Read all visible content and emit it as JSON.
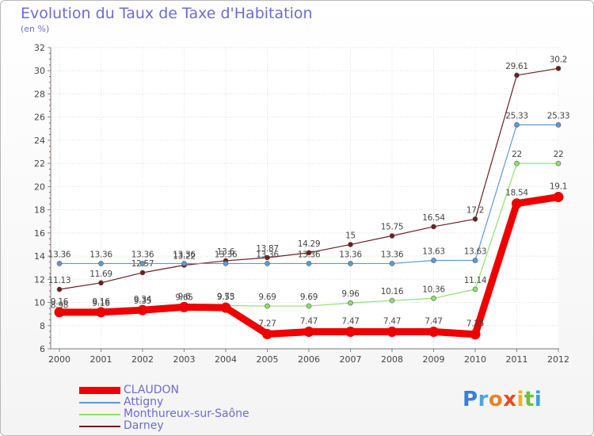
{
  "title": "Evolution du Taux de Taxe d'Habitation",
  "subtitle": "(en %)",
  "logo": {
    "letters": [
      "P",
      "r",
      "o",
      "x",
      "i",
      "t",
      "i"
    ],
    "colors": [
      "#3a7fd0",
      "#4aa8e0",
      "#e8822a",
      "#e84a2a",
      "#f0b020",
      "#6cc040",
      "#3aa0d8"
    ]
  },
  "chart_data": {
    "type": "line",
    "title": "Evolution du Taux de Taxe d'Habitation",
    "subtitle": "(en %)",
    "xlabel": "",
    "ylabel": "",
    "x": [
      "2000",
      "2001",
      "2002",
      "2003",
      "2004",
      "2005",
      "2006",
      "2007",
      "2008",
      "2009",
      "2010",
      "2011",
      "2012"
    ],
    "ylim": [
      6,
      32
    ],
    "yticks": [
      "6",
      "8",
      "10",
      "12",
      "14",
      "16",
      "18",
      "20",
      "22",
      "24",
      "26",
      "28",
      "30",
      "32"
    ],
    "grid": "horizontal",
    "legend": "bottom-left",
    "series": [
      {
        "name": "Darney",
        "color": "#6b1f1f",
        "values": [
          11.13,
          11.69,
          12.57,
          13.22,
          13.6,
          13.87,
          14.29,
          15,
          15.75,
          16.54,
          17.2,
          29.61,
          30.2
        ],
        "labels": [
          "11.13",
          "11.69",
          "12.57",
          "13.22",
          "13.6",
          "13.87",
          "14.29",
          "15",
          "15.75",
          "16.54",
          "17.2",
          "29.61",
          "30.2"
        ]
      },
      {
        "name": "Attigny",
        "color": "#5b9bd5",
        "values": [
          13.36,
          13.36,
          13.36,
          13.36,
          13.36,
          13.36,
          13.36,
          13.36,
          13.36,
          13.63,
          13.63,
          25.33,
          25.33
        ],
        "labels": [
          "13.36",
          "13.36",
          "13.36",
          "13.36",
          "13.36",
          "13.36",
          "13.36",
          "13.36",
          "13.36",
          "13.63",
          "13.63",
          "25.33",
          "25.33"
        ]
      },
      {
        "name": "Monthureux-sur-Saône",
        "color": "#90e070",
        "values": [
          8.98,
          9.16,
          9.35,
          9.65,
          9.73,
          9.69,
          9.69,
          9.96,
          10.16,
          10.36,
          11.14,
          22,
          22
        ],
        "labels": [
          "8.98",
          "9.16",
          "9.35",
          "9.65",
          "9.73",
          "9.69",
          "9.69",
          "9.96",
          "10.16",
          "10.36",
          "11.14",
          "22",
          "22"
        ]
      },
      {
        "name": "CLAUDON",
        "color": "#ee0000",
        "values": [
          9.16,
          9.16,
          9.34,
          9.6,
          9.55,
          7.27,
          7.47,
          7.47,
          7.47,
          7.47,
          7.25,
          18.54,
          19.1
        ],
        "labels": [
          "9.16",
          "9.16",
          "9.34",
          "9.6",
          "9.55",
          "7.27",
          "7.47",
          "7.47",
          "7.47",
          "7.47",
          "7.25",
          "18.54",
          "19.1"
        ]
      }
    ],
    "legend_entries": [
      "CLAUDON",
      "Attigny",
      "Monthureux-sur-Saône",
      "Darney"
    ]
  }
}
